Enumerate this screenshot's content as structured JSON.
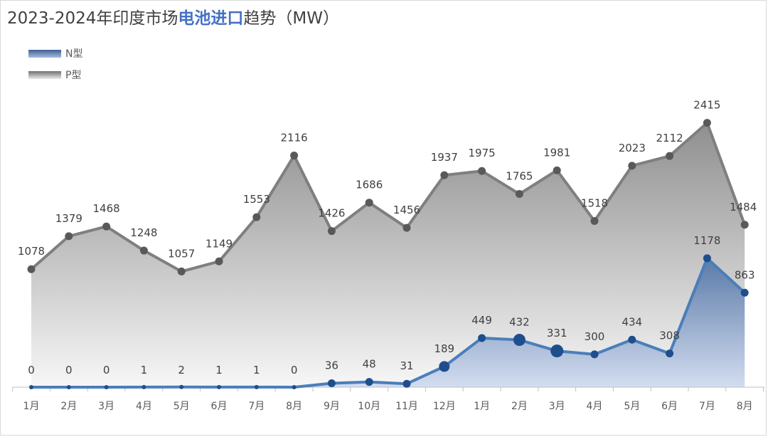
{
  "title": {
    "prefix": "2023-2024年印度市场",
    "highlight": "电池进口",
    "suffix": "趋势（MW）"
  },
  "colors": {
    "p_line": "#7f7f7f",
    "p_marker": "#595959",
    "n_line": "#4a7ebb",
    "n_marker": "#1f4e8c",
    "axis": "#bfbfbf",
    "label": "#404040"
  },
  "chart_data": {
    "type": "area",
    "title": "2023-2024年印度市场电池进口趋势（MW）",
    "categories": [
      "1月",
      "2月",
      "3月",
      "4月",
      "5月",
      "6月",
      "7月",
      "8月",
      "9月",
      "10月",
      "11月",
      "12月",
      "1月",
      "2月",
      "3月",
      "4月",
      "5月",
      "6月",
      "7月",
      "8月"
    ],
    "series": [
      {
        "name": "N型",
        "values": [
          0,
          0,
          0,
          1,
          2,
          1,
          1,
          0,
          36,
          48,
          31,
          189,
          449,
          432,
          331,
          300,
          434,
          308,
          1178,
          863
        ]
      },
      {
        "name": "P型",
        "values": [
          1078,
          1379,
          1468,
          1248,
          1057,
          1149,
          1553,
          2116,
          1426,
          1686,
          1456,
          1937,
          1975,
          1765,
          1981,
          1518,
          2023,
          2112,
          2415,
          1484
        ]
      }
    ],
    "ylim": [
      0,
      2700
    ],
    "grid": false,
    "legend_position": "top-left",
    "data_labels": true
  }
}
